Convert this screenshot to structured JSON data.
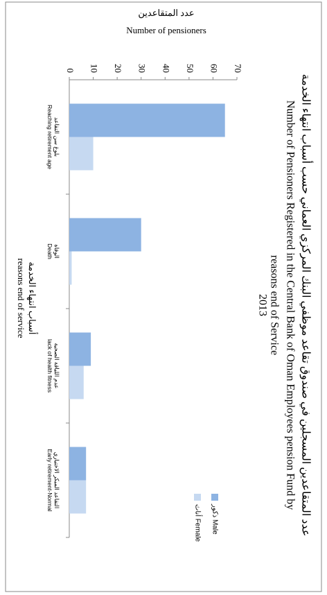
{
  "chart_data": {
    "type": "bar",
    "title": [
      "عدد المتقاعدين المسجلين في صندوق تقاعد موظفي البنك المركزي العماني حسب أسباب انتهاء الخدمة",
      "Number of Pensioners Registered  in the Central Bank of Oman Employees pension Fund by",
      "reasons end of Service",
      "2013"
    ],
    "y_label": [
      "عدد المتقاعدين",
      "Number of pensioners"
    ],
    "x_label": [
      "أسباب انتهاء الخدمة",
      "reasons end of service"
    ],
    "categories": [
      "Reaching retirement age",
      "Death",
      "lack of health fitness",
      "Early retirement-Normal"
    ],
    "categories_ar": [
      "بلوغ سن التقاعد",
      "الوفاة",
      "عدم اللياقة الصحية",
      "التقاعد المبكر الاختياري"
    ],
    "series": [
      {
        "name": "ذكور Male",
        "color": "#8db3e2",
        "values": [
          65,
          30,
          9,
          7
        ]
      },
      {
        "name": "أناث Female",
        "color": "#c6d9f1",
        "values": [
          10,
          1,
          6,
          7
        ]
      }
    ],
    "ylim": [
      0,
      70
    ],
    "yticks": [
      0,
      10,
      20,
      30,
      40,
      50,
      60,
      70
    ],
    "grid": false,
    "legend": "right"
  }
}
